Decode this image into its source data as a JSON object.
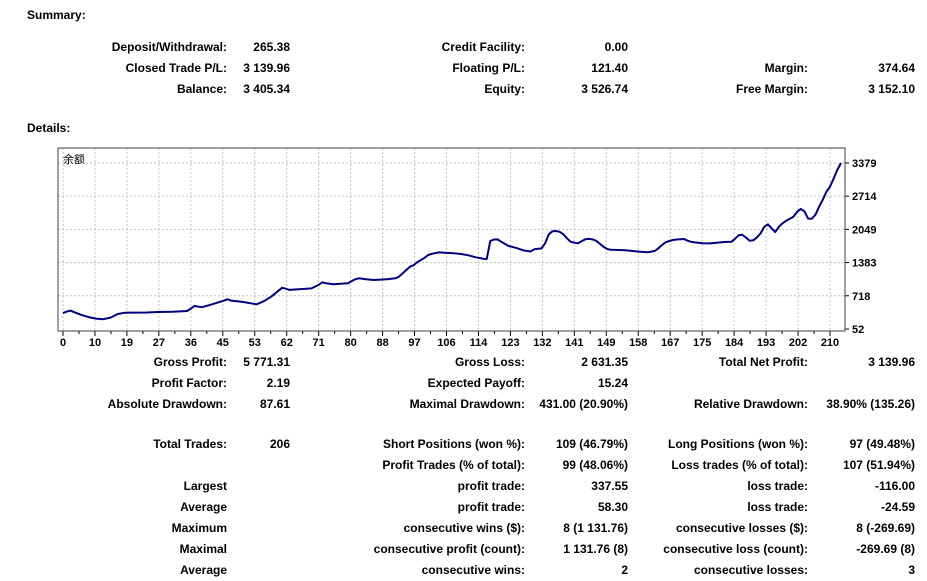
{
  "summary": {
    "title": "Summary:",
    "rows": [
      [
        "Deposit/Withdrawal:",
        "265.38",
        "Credit Facility:",
        "0.00",
        "",
        ""
      ],
      [
        "Closed Trade P/L:",
        "3 139.96",
        "Floating P/L:",
        "121.40",
        "Margin:",
        "374.64"
      ],
      [
        "Balance:",
        "3 405.34",
        "Equity:",
        "3 526.74",
        "Free Margin:",
        "3 152.10"
      ]
    ]
  },
  "details": {
    "title": "Details:",
    "rows": [
      [
        "Gross Profit:",
        "5 771.31",
        "Gross Loss:",
        "2 631.35",
        "Total Net Profit:",
        "3 139.96"
      ],
      [
        "Profit Factor:",
        "2.19",
        "Expected Payoff:",
        "15.24",
        "",
        ""
      ],
      [
        "Absolute Drawdown:",
        "87.61",
        "Maximal Drawdown:",
        "431.00 (20.90%)",
        "Relative Drawdown:",
        "38.90% (135.26)"
      ]
    ]
  },
  "stats": {
    "rows": [
      [
        "Total Trades:",
        "206",
        "Short Positions (won %):",
        "109 (46.79%)",
        "Long Positions (won %):",
        "97 (49.48%)"
      ],
      [
        "",
        "",
        "Profit Trades (% of total):",
        "99 (48.06%)",
        "Loss trades (% of total):",
        "107 (51.94%)"
      ],
      [
        "Largest",
        "",
        "profit trade:",
        "337.55",
        "loss trade:",
        "-116.00"
      ],
      [
        "Average",
        "",
        "profit trade:",
        "58.30",
        "loss trade:",
        "-24.59"
      ],
      [
        "Maximum",
        "",
        "consecutive wins ($):",
        "8 (1 131.76)",
        "consecutive losses ($):",
        "8 (-269.69)"
      ],
      [
        "Maximal",
        "",
        "consecutive profit (count):",
        "1 131.76 (8)",
        "consecutive loss (count):",
        "-269.69 (8)"
      ],
      [
        "Average",
        "",
        "consecutive wins:",
        "2",
        "consecutive losses:",
        "3"
      ]
    ]
  },
  "chart_data": {
    "type": "line",
    "title": "余额",
    "xlabel": "",
    "ylabel": "",
    "xlim": [
      0,
      213
    ],
    "ylim": [
      52,
      3379
    ],
    "grid": true,
    "legend_position": "none",
    "line_color": "#000080",
    "grid_color": "#c0c0c0",
    "border_color": "#404040",
    "xticks": [
      0,
      10,
      19,
      27,
      36,
      45,
      53,
      62,
      71,
      80,
      88,
      97,
      106,
      114,
      123,
      132,
      141,
      149,
      158,
      167,
      175,
      184,
      193,
      202,
      210
    ],
    "yticks": [
      52,
      718,
      1383,
      2049,
      2714,
      3379
    ],
    "series": [
      {
        "name": "余额",
        "points": [
          [
            0,
            370
          ],
          [
            1,
            400
          ],
          [
            2,
            420
          ],
          [
            3,
            390
          ],
          [
            5,
            335
          ],
          [
            7,
            290
          ],
          [
            9,
            260
          ],
          [
            11,
            248
          ],
          [
            13,
            280
          ],
          [
            15,
            352
          ],
          [
            17,
            378
          ],
          [
            20,
            380
          ],
          [
            23,
            382
          ],
          [
            26,
            392
          ],
          [
            30,
            398
          ],
          [
            34,
            412
          ],
          [
            36,
            512
          ],
          [
            38,
            488
          ],
          [
            40,
            530
          ],
          [
            42,
            575
          ],
          [
            44,
            620
          ],
          [
            45,
            648
          ],
          [
            46,
            622
          ],
          [
            48,
            605
          ],
          [
            50,
            585
          ],
          [
            52,
            560
          ],
          [
            53,
            548
          ],
          [
            55,
            610
          ],
          [
            57,
            700
          ],
          [
            59,
            820
          ],
          [
            60,
            878
          ],
          [
            61,
            860
          ],
          [
            62,
            835
          ],
          [
            64,
            845
          ],
          [
            66,
            855
          ],
          [
            68,
            866
          ],
          [
            70,
            935
          ],
          [
            71,
            988
          ],
          [
            72,
            968
          ],
          [
            74,
            950
          ],
          [
            76,
            958
          ],
          [
            78,
            968
          ],
          [
            80,
            1048
          ],
          [
            81,
            1068
          ],
          [
            83,
            1048
          ],
          [
            85,
            1035
          ],
          [
            87,
            1042
          ],
          [
            89,
            1052
          ],
          [
            91,
            1068
          ],
          [
            92,
            1100
          ],
          [
            93,
            1168
          ],
          [
            94,
            1235
          ],
          [
            95,
            1300
          ],
          [
            96,
            1330
          ],
          [
            97,
            1390
          ],
          [
            98,
            1435
          ],
          [
            99,
            1480
          ],
          [
            100,
            1535
          ],
          [
            101,
            1560
          ],
          [
            103,
            1588
          ],
          [
            105,
            1578
          ],
          [
            107,
            1570
          ],
          [
            109,
            1555
          ],
          [
            111,
            1530
          ],
          [
            113,
            1490
          ],
          [
            115,
            1460
          ],
          [
            116,
            1455
          ],
          [
            117,
            1815
          ],
          [
            118,
            1845
          ],
          [
            119,
            1848
          ],
          [
            120,
            1800
          ],
          [
            122,
            1715
          ],
          [
            124,
            1680
          ],
          [
            126,
            1630
          ],
          [
            128,
            1605
          ],
          [
            129,
            1650
          ],
          [
            131,
            1668
          ],
          [
            132,
            1770
          ],
          [
            133,
            1950
          ],
          [
            134,
            2010
          ],
          [
            135,
            2016
          ],
          [
            136,
            2000
          ],
          [
            137,
            1950
          ],
          [
            138,
            1870
          ],
          [
            139,
            1800
          ],
          [
            140,
            1782
          ],
          [
            141,
            1770
          ],
          [
            142,
            1810
          ],
          [
            143,
            1850
          ],
          [
            144,
            1858
          ],
          [
            145,
            1848
          ],
          [
            146,
            1820
          ],
          [
            147,
            1760
          ],
          [
            148,
            1700
          ],
          [
            149,
            1655
          ],
          [
            150,
            1640
          ],
          [
            152,
            1635
          ],
          [
            154,
            1630
          ],
          [
            156,
            1615
          ],
          [
            158,
            1600
          ],
          [
            160,
            1590
          ],
          [
            162,
            1615
          ],
          [
            163,
            1668
          ],
          [
            164,
            1735
          ],
          [
            165,
            1790
          ],
          [
            166,
            1815
          ],
          [
            167,
            1835
          ],
          [
            168,
            1845
          ],
          [
            169,
            1850
          ],
          [
            170,
            1855
          ],
          [
            171,
            1822
          ],
          [
            172,
            1800
          ],
          [
            173,
            1788
          ],
          [
            175,
            1770
          ],
          [
            177,
            1768
          ],
          [
            179,
            1782
          ],
          [
            181,
            1795
          ],
          [
            183,
            1800
          ],
          [
            184,
            1860
          ],
          [
            185,
            1930
          ],
          [
            186,
            1940
          ],
          [
            187,
            1885
          ],
          [
            188,
            1820
          ],
          [
            189,
            1830
          ],
          [
            190,
            1890
          ],
          [
            191,
            1970
          ],
          [
            192,
            2100
          ],
          [
            193,
            2150
          ],
          [
            194,
            2070
          ],
          [
            195,
            1995
          ],
          [
            196,
            2100
          ],
          [
            197,
            2170
          ],
          [
            198,
            2220
          ],
          [
            199,
            2260
          ],
          [
            200,
            2305
          ],
          [
            201,
            2400
          ],
          [
            202,
            2460
          ],
          [
            203,
            2410
          ],
          [
            204,
            2265
          ],
          [
            205,
            2260
          ],
          [
            206,
            2340
          ],
          [
            207,
            2500
          ],
          [
            208,
            2640
          ],
          [
            209,
            2800
          ],
          [
            210,
            2905
          ],
          [
            211,
            3070
          ],
          [
            212,
            3240
          ],
          [
            213,
            3379
          ]
        ]
      }
    ]
  }
}
